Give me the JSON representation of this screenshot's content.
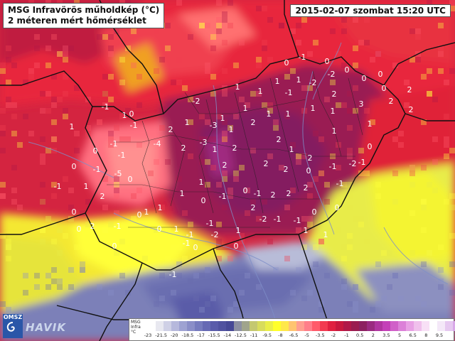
{
  "header": {
    "title_line1": "MSG Infravörös műholdkép (°C)",
    "title_line2": "2 méteren mért hőmérséklet",
    "datetime": "2015-02-07 szombat 15:20 UTC"
  },
  "logo": {
    "badge": "OMSZ",
    "watermark": "HAVIK",
    "icon": "omsz-swirl-logo"
  },
  "legend": {
    "label_lines": [
      "MSG",
      "Infra",
      "°C"
    ],
    "swatches": [
      "#ffffff",
      "#e8e8f0",
      "#cfd0e6",
      "#b6b8dc",
      "#9ea2d2",
      "#8a8ec8",
      "#767bbe",
      "#6669b4",
      "#5a5caa",
      "#5052a0",
      "#464896",
      "#8c8fa2",
      "#a0a48c",
      "#c4c870",
      "#d8dc5c",
      "#eaee48",
      "#ffff2a",
      "#ffe84a",
      "#ffc470",
      "#ff9e90",
      "#ff7e8a",
      "#ff5a6a",
      "#f23a50",
      "#e02040",
      "#c8183e",
      "#b01848",
      "#9a1c50",
      "#8c2060",
      "#9a2a80",
      "#b035a0",
      "#c440b8",
      "#d060c8",
      "#dc80d8",
      "#e8a0e4",
      "#f0c0ec",
      "#f8e0f6",
      "#ffffff",
      "#f4e8f8",
      "#e6c8f0",
      "#d8a8e8"
    ],
    "ticks": [
      "-23",
      "-21.5",
      "-20",
      "-18.5",
      "-17",
      "-15.5",
      "-14",
      "-12.5",
      "-11",
      "-9.5",
      "-8",
      "-6.5",
      "-5",
      "-3.5",
      "-2",
      "-1",
      "0.5",
      "2",
      "3.5",
      "5",
      "6.5",
      "8",
      "9.5"
    ]
  },
  "temperature_labels": [
    "0",
    "-1",
    "0",
    "0",
    "0",
    "-2",
    "1",
    "1",
    "-2",
    "0",
    "0",
    "2",
    "1",
    "1",
    "-1",
    "1",
    "2",
    "3",
    "2",
    "2",
    "1",
    "1",
    "1",
    "1",
    "1",
    "-2",
    "1",
    "2",
    "2",
    "1",
    "0",
    "-3",
    "1",
    "-1",
    "1",
    "2",
    "1",
    "-3",
    "-4",
    "1",
    "2",
    "2",
    "1",
    "2",
    "-1",
    "1",
    "0",
    "0",
    "-1",
    "-5",
    "0",
    "2",
    "2",
    "2",
    "0",
    "-1",
    "-2",
    "1",
    "1",
    "-1",
    "0",
    "-1",
    "2",
    "2",
    "2",
    "-1",
    "-1",
    "0",
    "0",
    "1",
    "2",
    "2",
    "-2",
    "-1",
    "-1",
    "0",
    "0",
    "1",
    "1",
    "-1",
    "-1",
    "-1",
    "0",
    "1",
    "1",
    "0",
    "1",
    "-1",
    "-1",
    "-2",
    "0",
    "1",
    "2",
    "0",
    "0",
    "-1",
    "-1",
    "0",
    "0",
    "-1"
  ]
}
